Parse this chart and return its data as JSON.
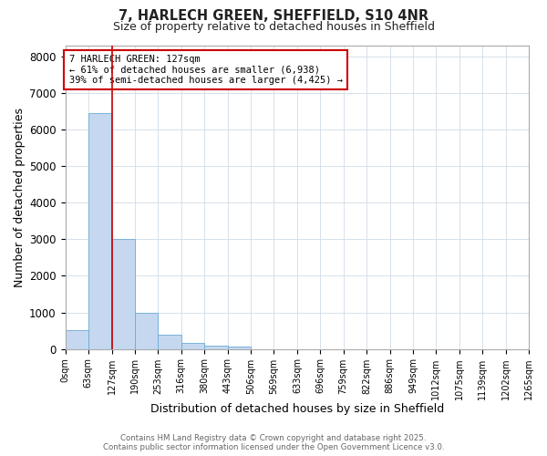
{
  "title1": "7, HARLECH GREEN, SHEFFIELD, S10 4NR",
  "title2": "Size of property relative to detached houses in Sheffield",
  "xlabel": "Distribution of detached houses by size in Sheffield",
  "ylabel": "Number of detached properties",
  "annotation_line1": "7 HARLECH GREEN: 127sqm",
  "annotation_line2": "← 61% of detached houses are smaller (6,938)",
  "annotation_line3": "39% of semi-detached houses are larger (4,425) →",
  "footer1": "Contains HM Land Registry data © Crown copyright and database right 2025.",
  "footer2": "Contains public sector information licensed under the Open Government Licence v3.0.",
  "bin_edges": [
    0,
    63,
    127,
    190,
    253,
    316,
    380,
    443,
    506,
    569,
    633,
    696,
    759,
    822,
    886,
    949,
    1012,
    1075,
    1139,
    1202,
    1265
  ],
  "bar_heights": [
    520,
    6450,
    3000,
    1000,
    380,
    155,
    100,
    60,
    0,
    0,
    0,
    0,
    0,
    0,
    0,
    0,
    0,
    0,
    0,
    0
  ],
  "bar_color": "#c5d8f0",
  "bar_edgecolor": "#6aaad4",
  "vline_x": 127,
  "vline_color": "#cc0000",
  "annotation_box_color": "#cc0000",
  "ylim": [
    0,
    8300
  ],
  "yticks": [
    0,
    1000,
    2000,
    3000,
    4000,
    5000,
    6000,
    7000,
    8000
  ],
  "tick_labels": [
    "0sqm",
    "63sqm",
    "127sqm",
    "190sqm",
    "253sqm",
    "316sqm",
    "380sqm",
    "443sqm",
    "506sqm",
    "569sqm",
    "633sqm",
    "696sqm",
    "759sqm",
    "822sqm",
    "886sqm",
    "949sqm",
    "1012sqm",
    "1075sqm",
    "1139sqm",
    "1202sqm",
    "1265sqm"
  ],
  "bg_color": "#ffffff",
  "plot_bg": "#ffffff",
  "grid_color": "#d0dce8"
}
